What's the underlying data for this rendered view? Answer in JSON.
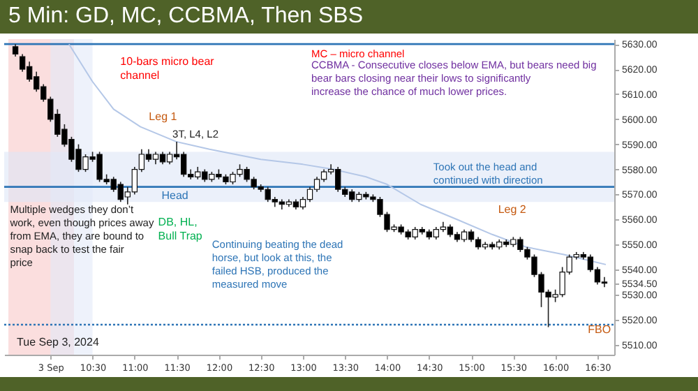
{
  "chart_data": {
    "type": "candlestick",
    "title": "5 Min: GD, MC, CCBMA, Then SBS",
    "annotations": [
      "10-bars micro bear channel",
      "Leg 1",
      "3T, L4, L2",
      "Head",
      "DB, HL, Bull Trap",
      "Multiple wedges they don’t work, even though prices away from EMA, they are bound to snap back to test the fair price",
      "Continuing beating the dead horse, but look at this, the failed HSB, produced the measured move",
      "Took out the head and continued with direction",
      "Leg 2",
      "FBO",
      "MC – micro channel",
      "CCBMA - Consecutive closes below EMA, but bears need big bear bars closing near their lows to significantly increase the chance of much lower prices.",
      "Tue Sep 3, 2024"
    ],
    "x": [
      9.5833,
      9.6667,
      9.75,
      9.8333,
      9.9167,
      10.0,
      10.0833,
      10.1667,
      10.25,
      10.3333,
      10.4167,
      10.5,
      10.5833,
      10.6667,
      10.75,
      10.8333,
      10.9167,
      11.0,
      11.0833,
      11.1667,
      11.25,
      11.3333,
      11.4167,
      11.5,
      11.5833,
      11.6667,
      11.75,
      11.8333,
      11.9167,
      12.0,
      12.0833,
      12.1667,
      12.25,
      12.3333,
      12.4167,
      12.5,
      12.5833,
      12.6667,
      12.75,
      12.8333,
      12.9167,
      13.0,
      13.0833,
      13.1667,
      13.25,
      13.3333,
      13.4167,
      13.5,
      13.5833,
      13.6667,
      13.75,
      13.8333,
      13.9167,
      14.0,
      14.0833,
      14.1667,
      14.25,
      14.3333,
      14.4167,
      14.5,
      14.5833,
      14.6667,
      14.75,
      14.8333,
      14.9167,
      15.0,
      15.0833,
      15.1667,
      15.25,
      15.3333,
      15.4167,
      15.5,
      15.5833,
      15.6667,
      15.75,
      15.8333,
      15.9167,
      16.0,
      16.0833,
      16.1667,
      16.25,
      16.3333,
      16.4167,
      16.5,
      16.5833
    ],
    "ohlc": [
      [
        5629,
        5630,
        5625,
        5626
      ],
      [
        5625,
        5626,
        5619,
        5620
      ],
      [
        5621,
        5623,
        5615,
        5616
      ],
      [
        5617,
        5619,
        5611,
        5612
      ],
      [
        5613,
        5614,
        5607,
        5608
      ],
      [
        5608,
        5609,
        5599,
        5600
      ],
      [
        5602,
        5604,
        5593,
        5594
      ],
      [
        5596,
        5598,
        5589,
        5590
      ],
      [
        5592,
        5593,
        5583,
        5584
      ],
      [
        5588,
        5590,
        5579,
        5580
      ],
      [
        5580,
        5586,
        5579,
        5585
      ],
      [
        5585,
        5587,
        5583,
        5584
      ],
      [
        5586,
        5587,
        5575,
        5576
      ],
      [
        5576,
        5578,
        5574,
        5575
      ],
      [
        5576,
        5577,
        5571,
        5572
      ],
      [
        5574,
        5575,
        5567,
        5568
      ],
      [
        5569,
        5573,
        5566,
        5571
      ],
      [
        5571,
        5581,
        5570,
        5580
      ],
      [
        5580,
        5588,
        5579,
        5586
      ],
      [
        5586,
        5588,
        5583,
        5584
      ],
      [
        5584,
        5587,
        5582,
        5586
      ],
      [
        5586,
        5587,
        5582,
        5583
      ],
      [
        5583,
        5587,
        5582,
        5586
      ],
      [
        5586,
        5591,
        5584,
        5585
      ],
      [
        5586,
        5587,
        5577,
        5578
      ],
      [
        5578,
        5580,
        5576,
        5577
      ],
      [
        5577,
        5581,
        5576,
        5579
      ],
      [
        5579,
        5580,
        5575,
        5576
      ],
      [
        5576,
        5579,
        5575,
        5578
      ],
      [
        5578,
        5580,
        5576,
        5577
      ],
      [
        5577,
        5578,
        5574,
        5575
      ],
      [
        5575,
        5579,
        5574,
        5578
      ],
      [
        5578,
        5582,
        5577,
        5580
      ],
      [
        5580,
        5581,
        5575,
        5576
      ],
      [
        5576,
        5577,
        5572,
        5573
      ],
      [
        5573,
        5574,
        5571,
        5572
      ],
      [
        5572,
        5573,
        5567,
        5568
      ],
      [
        5568,
        5569,
        5565,
        5567
      ],
      [
        5567,
        5568,
        5564,
        5566
      ],
      [
        5566,
        5568,
        5565,
        5567
      ],
      [
        5567,
        5568,
        5564,
        5565
      ],
      [
        5565,
        5569,
        5564,
        5568
      ],
      [
        5568,
        5573,
        5567,
        5572
      ],
      [
        5572,
        5577,
        5571,
        5576
      ],
      [
        5576,
        5580,
        5575,
        5579
      ],
      [
        5579,
        5582,
        5578,
        5580
      ],
      [
        5580,
        5581,
        5571,
        5572
      ],
      [
        5572,
        5573,
        5569,
        5570
      ],
      [
        5571,
        5572,
        5567,
        5568
      ],
      [
        5568,
        5571,
        5567,
        5570
      ],
      [
        5570,
        5571,
        5568,
        5569
      ],
      [
        5569,
        5570,
        5567,
        5568
      ],
      [
        5568,
        5569,
        5561,
        5562
      ],
      [
        5562,
        5563,
        5555,
        5556
      ],
      [
        5556,
        5558,
        5555,
        5557
      ],
      [
        5557,
        5558,
        5554,
        5555
      ],
      [
        5555,
        5556,
        5552,
        5553
      ],
      [
        5553,
        5557,
        5552,
        5556
      ],
      [
        5556,
        5557,
        5554,
        5555
      ],
      [
        5555,
        5556,
        5552,
        5553
      ],
      [
        5553,
        5557,
        5552,
        5556
      ],
      [
        5556,
        5559,
        5555,
        5557
      ],
      [
        5557,
        5558,
        5553,
        5554
      ],
      [
        5554,
        5555,
        5551,
        5552
      ],
      [
        5552,
        5556,
        5551,
        5555
      ],
      [
        5555,
        5556,
        5551,
        5552
      ],
      [
        5552,
        5553,
        5548,
        5549
      ],
      [
        5549,
        5551,
        5548,
        5550
      ],
      [
        5550,
        5551,
        5548,
        5549
      ],
      [
        5549,
        5552,
        5548,
        5551
      ],
      [
        5551,
        5552,
        5549,
        5550
      ],
      [
        5550,
        5553,
        5549,
        5552
      ],
      [
        5552,
        5553,
        5547,
        5548
      ],
      [
        5548,
        5549,
        5544,
        5545
      ],
      [
        5545,
        5546,
        5537,
        5538
      ],
      [
        5538,
        5539,
        5525,
        5531
      ],
      [
        5531,
        5532,
        5517,
        5529
      ],
      [
        5529,
        5532,
        5527,
        5530
      ],
      [
        5530,
        5541,
        5529,
        5539
      ],
      [
        5539,
        5546,
        5538,
        5545
      ],
      [
        5545,
        5547,
        5544,
        5546
      ],
      [
        5546,
        5547,
        5544,
        5545
      ],
      [
        5545,
        5546,
        5539,
        5540
      ],
      [
        5540,
        5541,
        5534,
        5535
      ],
      [
        5535,
        5537,
        5533,
        5534.5
      ]
    ],
    "series": [
      {
        "type": "line",
        "color": "#b4c7e7",
        "x": [
          10.22,
          10.5,
          10.75,
          11.07,
          11.5,
          11.89,
          12.5,
          13.0,
          13.36,
          13.75,
          14.0,
          14.4,
          14.83,
          15.25,
          15.65,
          16.1,
          16.6
        ],
        "values": [
          5630,
          5615,
          5604,
          5597,
          5591,
          5588,
          5584,
          5582,
          5580,
          5577,
          5574,
          5566,
          5560,
          5554,
          5549,
          5546,
          5542
        ]
      }
    ],
    "xlim": [
      9.45,
      16.7
    ],
    "ylim": [
      5506,
      5632
    ],
    "xticks": [
      {
        "value": 10,
        "label": "3 Sep"
      },
      {
        "value": 10.5,
        "label": "10:30"
      },
      {
        "value": 11,
        "label": "11:00"
      },
      {
        "value": 11.5,
        "label": "11:30"
      },
      {
        "value": 12,
        "label": "12:00"
      },
      {
        "value": 12.5,
        "label": "12:30"
      },
      {
        "value": 13,
        "label": "13:00"
      },
      {
        "value": 13.5,
        "label": "13:30"
      },
      {
        "value": 14,
        "label": "14:00"
      },
      {
        "value": 14.5,
        "label": "14:30"
      },
      {
        "value": 15,
        "label": "15:00"
      },
      {
        "value": 15.5,
        "label": "15:30"
      },
      {
        "value": 16,
        "label": "16:00"
      },
      {
        "value": 16.5,
        "label": "16:30"
      }
    ],
    "yticks": [
      {
        "value": 5510,
        "label": "5510.00"
      },
      {
        "value": 5520,
        "label": "5520.00"
      },
      {
        "value": 5530,
        "label": "5530.00"
      },
      {
        "value": 5534.5,
        "label": "5534.50"
      },
      {
        "value": 5540,
        "label": "5540.00"
      },
      {
        "value": 5550,
        "label": "5550.00"
      },
      {
        "value": 5560,
        "label": "5560.00"
      },
      {
        "value": 5570,
        "label": "5570.00"
      },
      {
        "value": 5580,
        "label": "5580.00"
      },
      {
        "value": 5590,
        "label": "5590.00"
      },
      {
        "value": 5600,
        "label": "5600.00"
      },
      {
        "value": 5610,
        "label": "5610.00"
      },
      {
        "value": 5620,
        "label": "5620.00"
      },
      {
        "value": 5630,
        "label": "5630.00"
      }
    ],
    "bands": [
      {
        "axis": "x",
        "from": 9.5,
        "to": 10.28,
        "color": "#f8c8c8"
      },
      {
        "axis": "y",
        "from": 5567,
        "to": 5587,
        "color": "#dde6f6"
      },
      {
        "axis": "x",
        "from": 10.0,
        "to": 10.5,
        "color": "#e3eaf8"
      }
    ],
    "ref_lines": [
      {
        "axis": "y",
        "value": 5630,
        "color": "#2e75b6",
        "line_style": "solid"
      },
      {
        "axis": "y",
        "value": 5573,
        "color": "#2e75b6",
        "line_style": "solid"
      },
      {
        "axis": "y",
        "value": 5518,
        "color": "#2e75b6",
        "line_style": "dotted"
      }
    ]
  }
}
